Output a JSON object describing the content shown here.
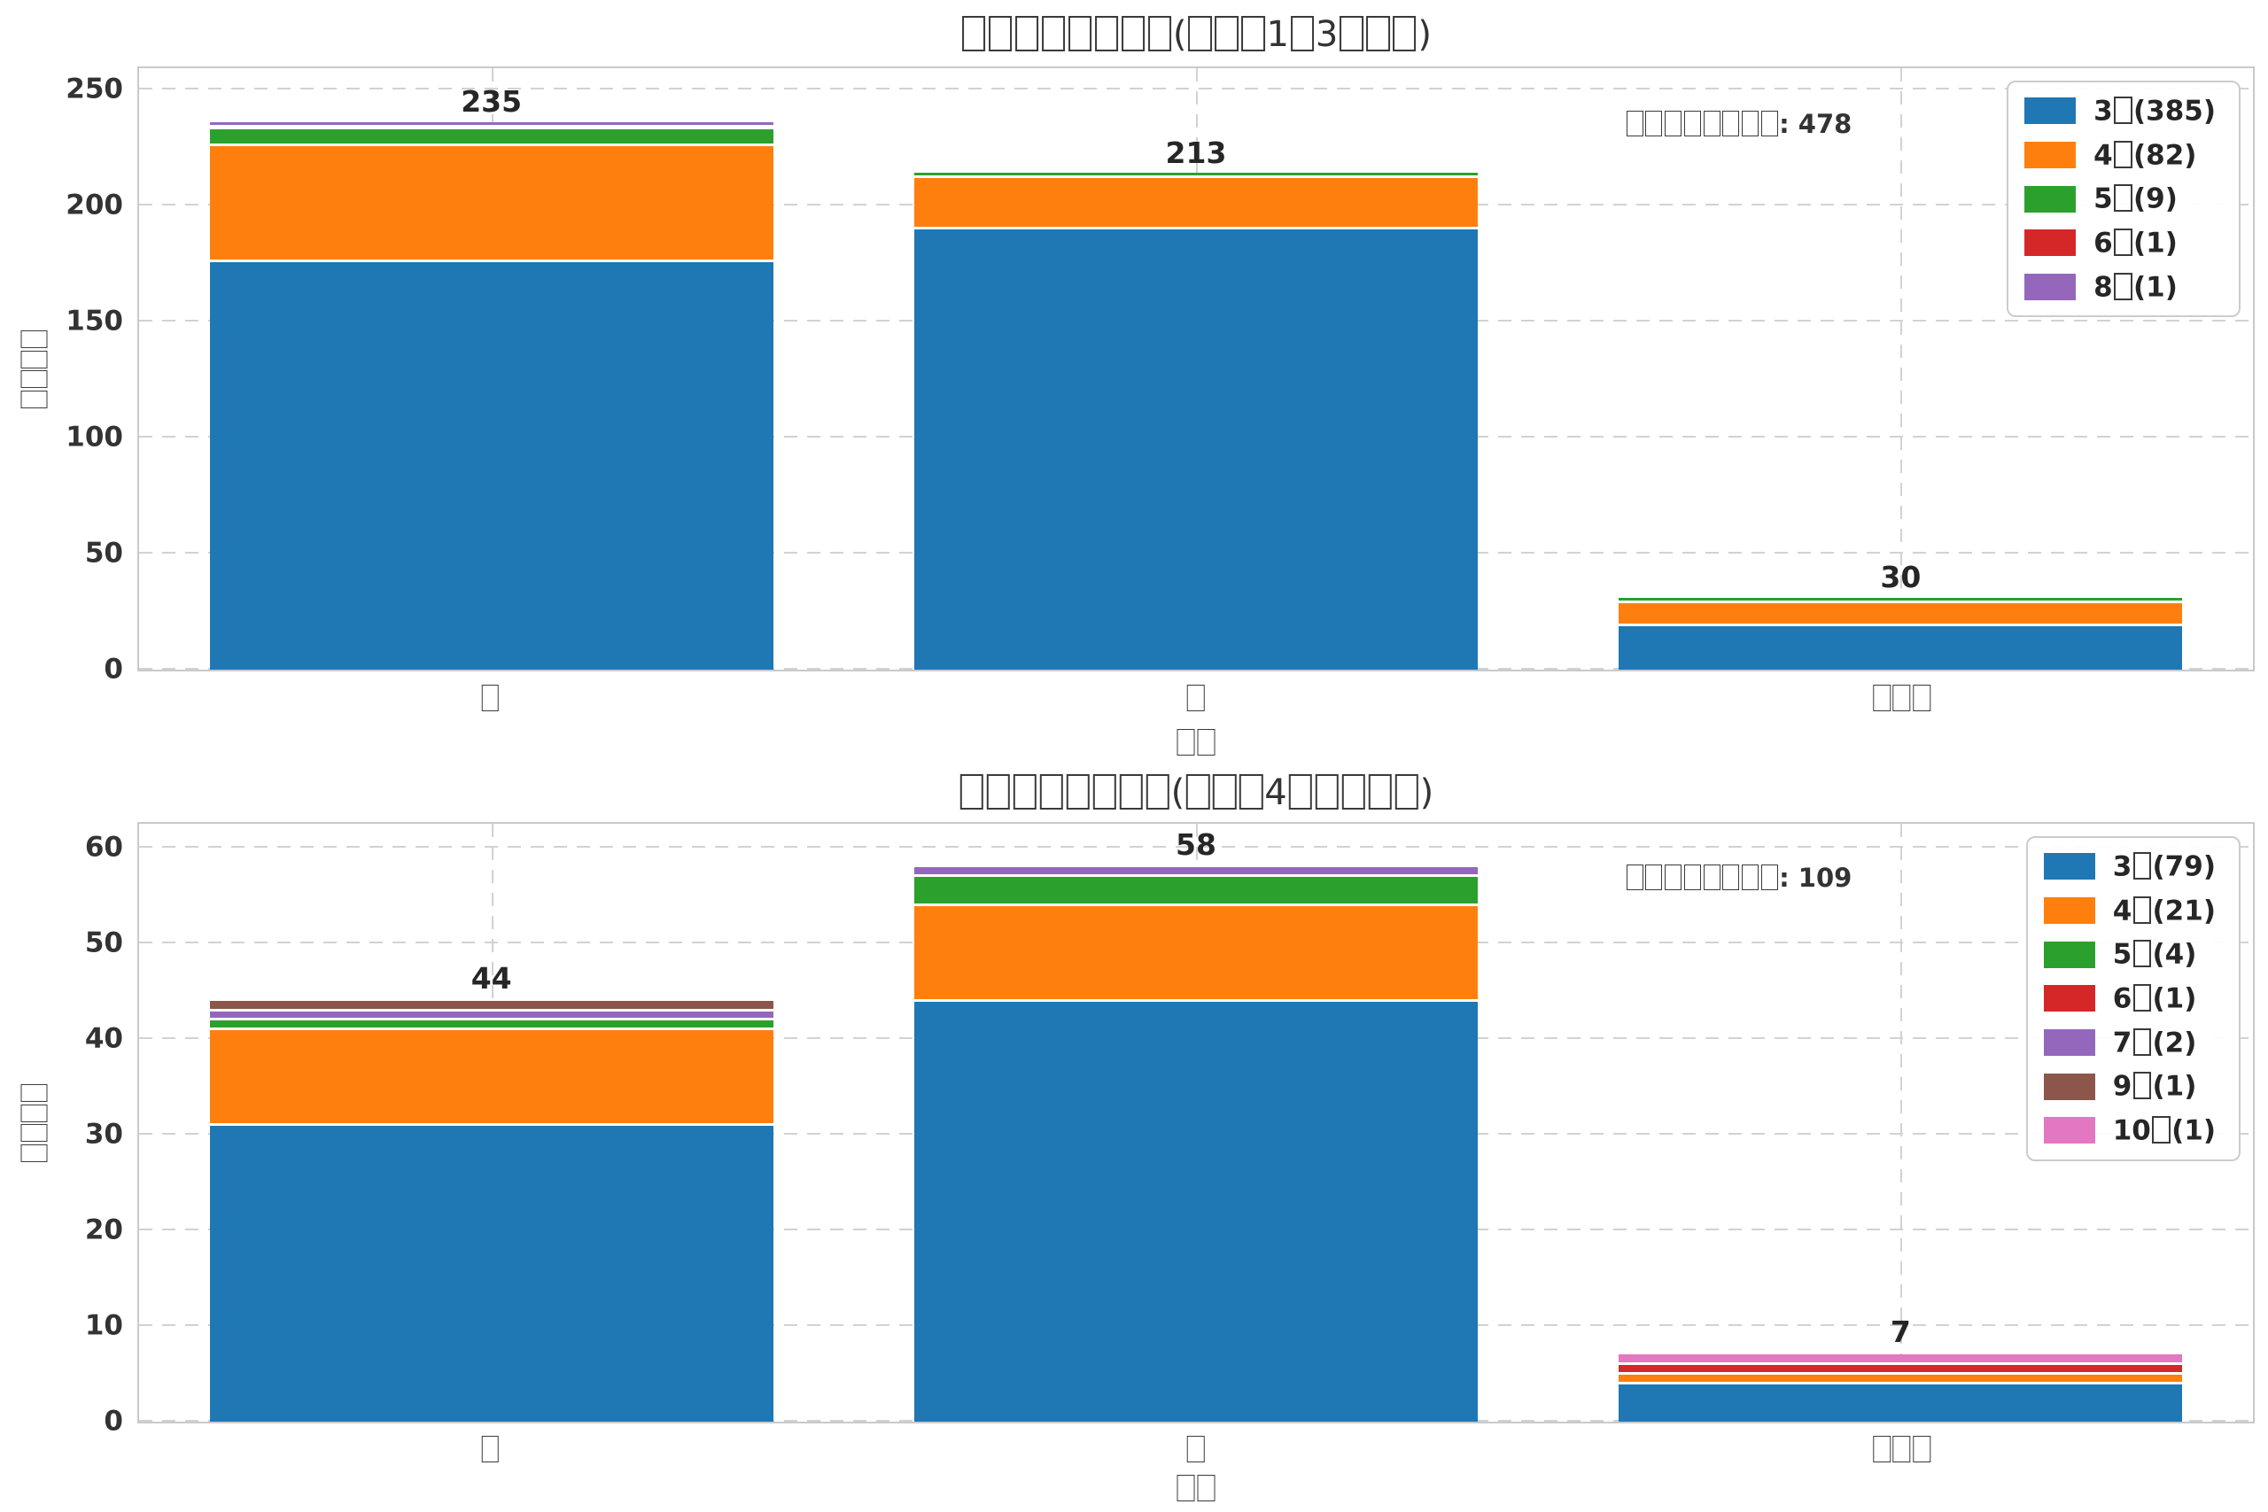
{
  "page": {
    "background": "#ffffff",
    "text_color": "#262626"
  },
  "chart_data": [
    {
      "type": "bar",
      "stacked": true,
      "title": "□□□□□□□□(□□□1□3□□□)",
      "xlabel": "□□",
      "ylabel": "□□□□",
      "annotation": "□□□□□□□□: 478",
      "categories": [
        "□",
        "□",
        "□□□"
      ],
      "totals": [
        235,
        213,
        30
      ],
      "yticks": [
        0,
        50,
        100,
        150,
        200,
        250
      ],
      "ylim": [
        0,
        259
      ],
      "grid": "dashed",
      "legend_position": "upper right",
      "series": [
        {
          "name": "3□(385)",
          "color": "#1f77b4",
          "values": [
            176,
            190,
            19
          ]
        },
        {
          "name": "4□(82)",
          "color": "#ff7f0e",
          "values": [
            50,
            22,
            10
          ]
        },
        {
          "name": "5□(9)",
          "color": "#2ca02c",
          "values": [
            7,
            1,
            1
          ]
        },
        {
          "name": "6□(1)",
          "color": "#d62728",
          "values": [
            1,
            0,
            0
          ]
        },
        {
          "name": "8□(1)",
          "color": "#9467bd",
          "values": [
            1,
            0,
            0
          ]
        }
      ]
    },
    {
      "type": "bar",
      "stacked": true,
      "title": "□□□□□□□□(□□□4□□□□□)",
      "xlabel": "□□",
      "ylabel": "□□□□",
      "annotation": "□□□□□□□□: 109",
      "categories": [
        "□",
        "□",
        "□□□"
      ],
      "totals": [
        44,
        58,
        7
      ],
      "yticks": [
        0,
        10,
        20,
        30,
        40,
        50,
        60
      ],
      "ylim": [
        0,
        62.5
      ],
      "grid": "dashed",
      "legend_position": "upper right",
      "series": [
        {
          "name": "3□(79)",
          "color": "#1f77b4",
          "values": [
            31,
            44,
            4
          ]
        },
        {
          "name": "4□(21)",
          "color": "#ff7f0e",
          "values": [
            10,
            10,
            1
          ]
        },
        {
          "name": "5□(4)",
          "color": "#2ca02c",
          "values": [
            1,
            3,
            0
          ]
        },
        {
          "name": "6□(1)",
          "color": "#d62728",
          "values": [
            0,
            0,
            1
          ]
        },
        {
          "name": "7□(2)",
          "color": "#9467bd",
          "values": [
            1,
            1,
            0
          ]
        },
        {
          "name": "9□(1)",
          "color": "#8c564b",
          "values": [
            1,
            0,
            0
          ]
        },
        {
          "name": "10□(1)",
          "color": "#e377c2",
          "values": [
            0,
            0,
            1
          ]
        }
      ]
    }
  ]
}
